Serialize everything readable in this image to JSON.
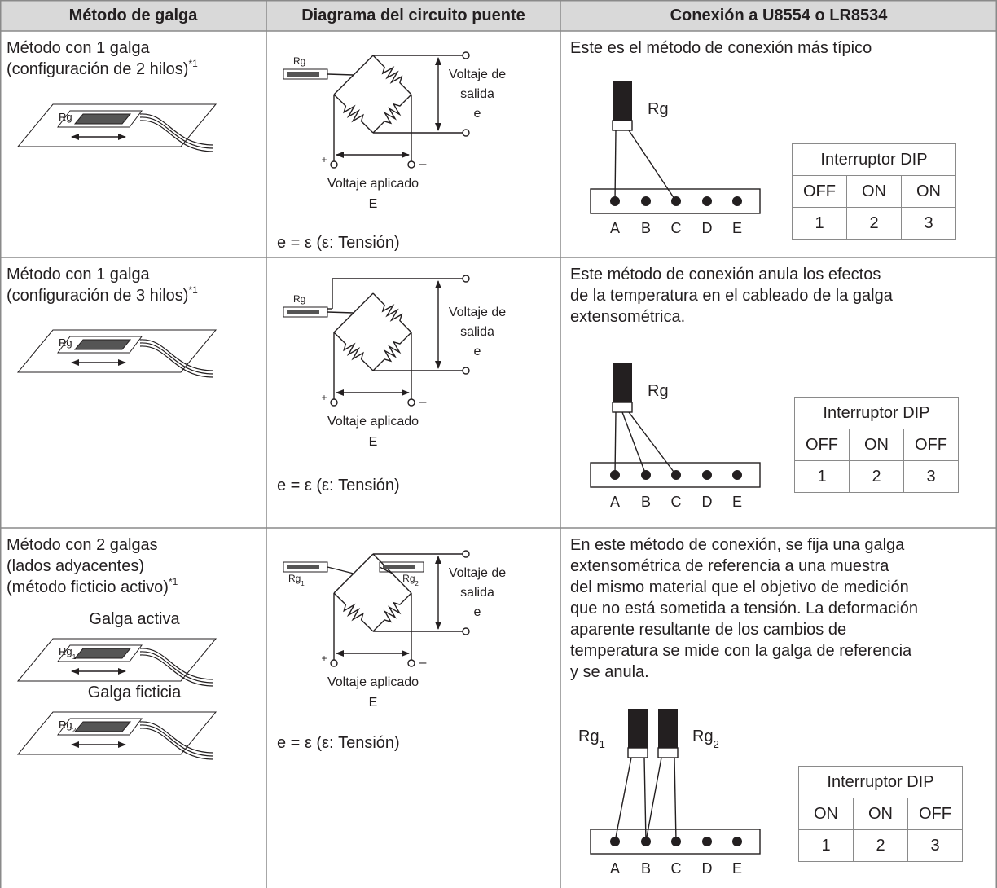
{
  "table": {
    "headers": [
      "Método de galga",
      "Diagrama del circuito puente",
      "Conexión a U8554 o LR8534"
    ],
    "rows": [
      {
        "method": {
          "lines": [
            "Método con 1 galga",
            "(configuración de 2 hilos)"
          ],
          "note": "*1",
          "gauges": [
            {
              "label": "Rg"
            }
          ]
        },
        "circuit": {
          "gauges": [
            {
              "label": "Rg"
            }
          ],
          "output": [
            "Voltaje de",
            "salida",
            "e"
          ],
          "plus": "+",
          "minus": "–",
          "applied": [
            "Voltaje aplicado",
            "E"
          ],
          "formula": "e = ε (ε: Tensión)"
        },
        "connection": {
          "text": [
            "Este es el método de conexión más típico"
          ],
          "gauges": [
            {
              "label": "Rg"
            }
          ],
          "terminals": [
            "A",
            "B",
            "C",
            "D",
            "E"
          ],
          "dip": {
            "title": "Interruptor DIP",
            "states": [
              "OFF",
              "ON",
              "ON"
            ],
            "numbers": [
              1,
              2,
              3
            ]
          }
        }
      },
      {
        "method": {
          "lines": [
            "Método con 1 galga",
            "(configuración de 3 hilos)"
          ],
          "note": "*1",
          "gauges": [
            {
              "label": "Rg"
            }
          ]
        },
        "circuit": {
          "gauges": [
            {
              "label": "Rg"
            }
          ],
          "output": [
            "Voltaje de",
            "salida",
            "e"
          ],
          "plus": "+",
          "minus": "–",
          "applied": [
            "Voltaje aplicado",
            "E"
          ],
          "formula": "e = ε (ε: Tensión)"
        },
        "connection": {
          "text": [
            "Este método de conexión anula los efectos",
            "de la temperatura en el cableado de la galga",
            "extensométrica."
          ],
          "gauges": [
            {
              "label": "Rg"
            }
          ],
          "terminals": [
            "A",
            "B",
            "C",
            "D",
            "E"
          ],
          "dip": {
            "title": "Interruptor DIP",
            "states": [
              "OFF",
              "ON",
              "OFF"
            ],
            "numbers": [
              1,
              2,
              3
            ]
          }
        }
      },
      {
        "method": {
          "lines": [
            "Método con 2 galgas",
            "(lados adyacentes)",
            "(método ficticio activo)"
          ],
          "note": "*1",
          "gauges": [
            {
              "caption": "Galga activa",
              "label": "Rg",
              "sub": "1"
            },
            {
              "caption": "Galga ficticia",
              "label": "Rg",
              "sub": "2"
            }
          ]
        },
        "circuit": {
          "gauges": [
            {
              "label": "Rg",
              "sub": "1"
            },
            {
              "label": "Rg",
              "sub": "2"
            }
          ],
          "output": [
            "Voltaje de",
            "salida",
            "e"
          ],
          "plus": "+",
          "minus": "–",
          "applied": [
            "Voltaje aplicado",
            "E"
          ],
          "formula": "e = ε (ε: Tensión)"
        },
        "connection": {
          "text": [
            "En este método de conexión, se fija una galga",
            "extensométrica de referencia a una muestra",
            "del mismo material que el objetivo de medición",
            "que no está sometida a tensión. La deformación",
            "aparente resultante de los cambios de",
            "temperatura se mide con la galga de referencia",
            "y se anula."
          ],
          "gauges": [
            {
              "label": "Rg",
              "sub": "1"
            },
            {
              "label": "Rg",
              "sub": "2"
            }
          ],
          "terminals": [
            "A",
            "B",
            "C",
            "D",
            "E"
          ],
          "dip": {
            "title": "Interruptor DIP",
            "states": [
              "ON",
              "ON",
              "OFF"
            ],
            "numbers": [
              1,
              2,
              3
            ]
          }
        }
      }
    ]
  }
}
